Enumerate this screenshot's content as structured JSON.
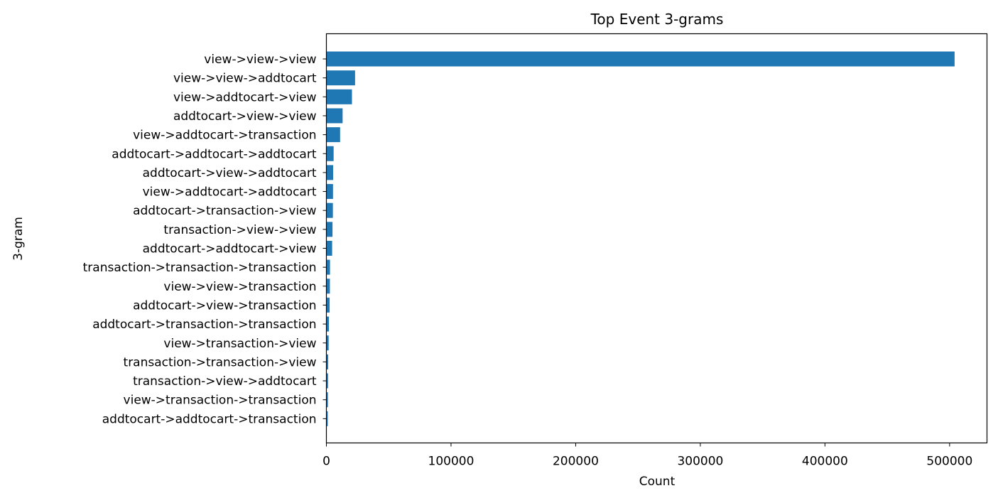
{
  "chart_data": {
    "type": "bar",
    "orientation": "horizontal",
    "title": "Top Event 3-grams",
    "xlabel": "Count",
    "ylabel": "3-gram",
    "xlim": [
      0,
      530000
    ],
    "xticks": [
      0,
      100000,
      200000,
      300000,
      400000,
      500000
    ],
    "grid": false,
    "bar_color": "#1f77b4",
    "categories": [
      "view->view->view",
      "view->view->addtocart",
      "view->addtocart->view",
      "addtocart->view->view",
      "view->addtocart->transaction",
      "addtocart->addtocart->addtocart",
      "addtocart->view->addtocart",
      "view->addtocart->addtocart",
      "addtocart->transaction->view",
      "transaction->view->view",
      "addtocart->addtocart->view",
      "transaction->transaction->transaction",
      "view->view->transaction",
      "addtocart->view->transaction",
      "addtocart->transaction->transaction",
      "view->transaction->view",
      "transaction->transaction->view",
      "transaction->view->addtocart",
      "view->transaction->transaction",
      "addtocart->addtocart->transaction"
    ],
    "values": [
      504000,
      23000,
      20500,
      13000,
      11000,
      5800,
      5400,
      5300,
      5200,
      4900,
      4600,
      2900,
      2800,
      2600,
      2000,
      1800,
      1400,
      1300,
      1200,
      1100
    ]
  }
}
